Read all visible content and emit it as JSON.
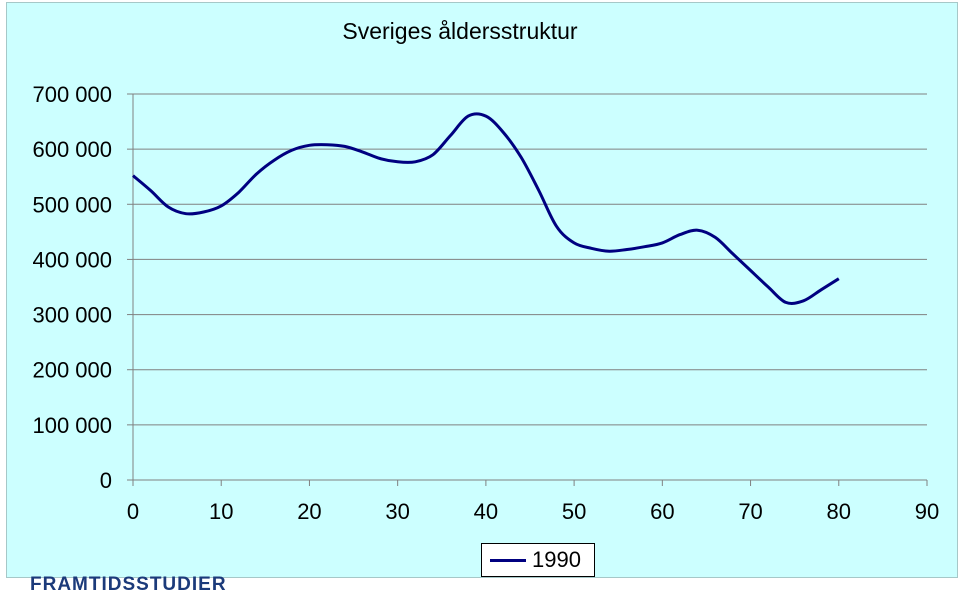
{
  "chart_data": {
    "type": "line",
    "title": "Sveriges åldersstruktur",
    "xlabel": "",
    "ylabel": "",
    "xlim": [
      0,
      90
    ],
    "ylim": [
      0,
      700000
    ],
    "x_ticks": [
      0,
      10,
      20,
      30,
      40,
      50,
      60,
      70,
      80,
      90
    ],
    "y_ticks": [
      0,
      100000,
      200000,
      300000,
      400000,
      500000,
      600000,
      700000
    ],
    "y_tick_labels": [
      "0",
      "100 000",
      "200 000",
      "300 000",
      "400 000",
      "500 000",
      "600 000",
      "700 000"
    ],
    "grid": "horizontal",
    "legend_position": "bottom",
    "series": [
      {
        "name": "1990",
        "color": "#000080",
        "x": [
          0,
          2,
          4,
          6,
          8,
          10,
          12,
          14,
          16,
          18,
          20,
          22,
          24,
          26,
          28,
          30,
          32,
          34,
          36,
          38,
          40,
          42,
          44,
          46,
          48,
          50,
          52,
          54,
          56,
          58,
          60,
          62,
          64,
          66,
          68,
          70,
          72,
          74,
          76,
          78,
          80
        ],
        "y": [
          552000,
          525000,
          495000,
          483000,
          486000,
          497000,
          522000,
          555000,
          580000,
          598000,
          607000,
          608000,
          605000,
          595000,
          583000,
          577000,
          577000,
          590000,
          625000,
          660000,
          660000,
          630000,
          585000,
          525000,
          460000,
          430000,
          420000,
          415000,
          418000,
          423000,
          430000,
          445000,
          453000,
          440000,
          410000,
          380000,
          350000,
          322000,
          325000,
          345000,
          365000
        ]
      }
    ]
  },
  "legend": {
    "label": "1990"
  },
  "logo": {
    "text": "FRAMTIDSSTUDIER"
  }
}
